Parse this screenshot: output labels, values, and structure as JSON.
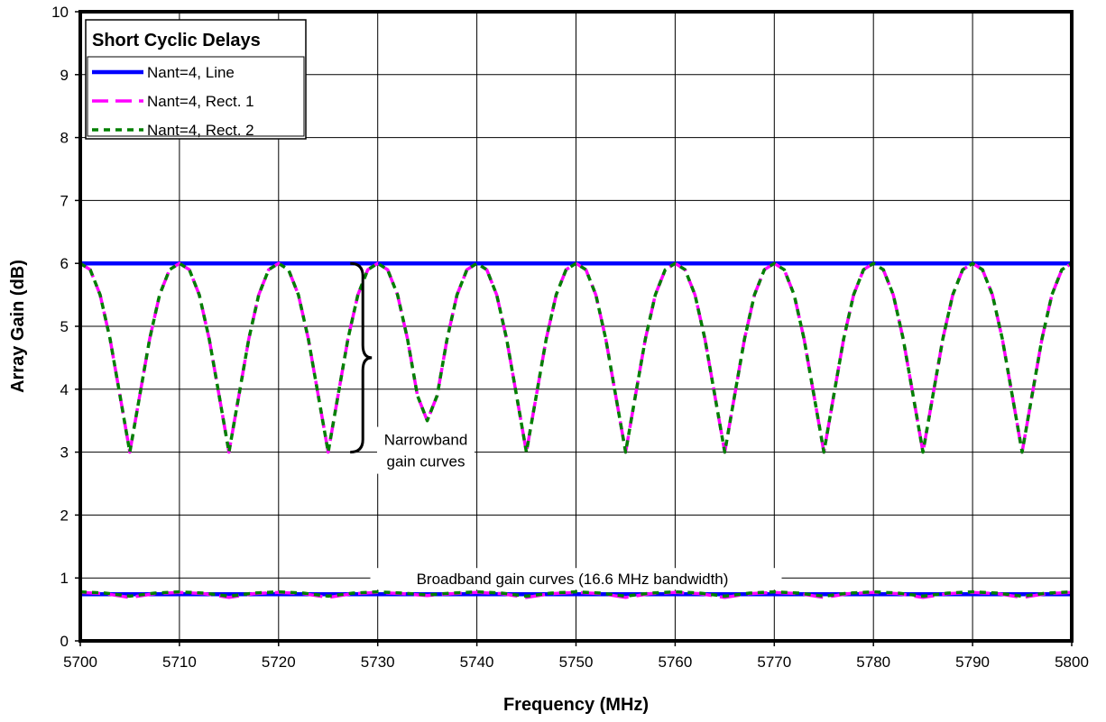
{
  "chart_data": {
    "type": "line",
    "title": "",
    "xlabel": "Frequency (MHz)",
    "ylabel": "Array Gain (dB)",
    "xlim": [
      5700,
      5800
    ],
    "ylim": [
      0,
      10
    ],
    "x_ticks": [
      5700,
      5710,
      5720,
      5730,
      5740,
      5750,
      5760,
      5770,
      5780,
      5790,
      5800
    ],
    "y_ticks": [
      0,
      1,
      2,
      3,
      4,
      5,
      6,
      7,
      8,
      9,
      10
    ],
    "grid": true,
    "legend": {
      "title": "Short Cyclic Delays",
      "placement": "top-left"
    },
    "series": [
      {
        "name": "Nant=4, Line",
        "color": "#0000ff",
        "style": "solid",
        "x": [
          5700,
          5800
        ],
        "values": [
          6.0,
          6.0
        ]
      },
      {
        "name": "Nant=4, Rect. 1",
        "color": "#ff00ff",
        "style": "dashed",
        "x": [
          5700,
          5701,
          5702,
          5703,
          5704,
          5705,
          5706,
          5707,
          5708,
          5709,
          5710,
          5711,
          5712,
          5713,
          5714,
          5715,
          5716,
          5717,
          5718,
          5719,
          5720,
          5721,
          5722,
          5723,
          5724,
          5725,
          5726,
          5727,
          5728,
          5729,
          5730,
          5731,
          5732,
          5733,
          5734,
          5735,
          5736,
          5737,
          5738,
          5739,
          5740,
          5741,
          5742,
          5743,
          5744,
          5745,
          5746,
          5747,
          5748,
          5749,
          5750,
          5751,
          5752,
          5753,
          5754,
          5755,
          5756,
          5757,
          5758,
          5759,
          5760,
          5761,
          5762,
          5763,
          5764,
          5765,
          5766,
          5767,
          5768,
          5769,
          5770,
          5771,
          5772,
          5773,
          5774,
          5775,
          5776,
          5777,
          5778,
          5779,
          5780,
          5781,
          5782,
          5783,
          5784,
          5785,
          5786,
          5787,
          5788,
          5789,
          5790,
          5791,
          5792,
          5793,
          5794,
          5795,
          5796,
          5797,
          5798,
          5799,
          5800
        ],
        "values": [
          6.0,
          5.9,
          5.5,
          4.8,
          3.9,
          3.0,
          3.9,
          4.8,
          5.5,
          5.9,
          6.0,
          5.9,
          5.5,
          4.8,
          3.9,
          3.0,
          3.9,
          4.8,
          5.5,
          5.9,
          6.0,
          5.9,
          5.5,
          4.8,
          3.9,
          3.0,
          3.9,
          4.8,
          5.5,
          5.9,
          6.0,
          5.9,
          5.5,
          4.8,
          3.9,
          3.5,
          3.9,
          4.8,
          5.5,
          5.9,
          6.0,
          5.9,
          5.5,
          4.8,
          3.9,
          3.0,
          3.9,
          4.8,
          5.5,
          5.9,
          6.0,
          5.9,
          5.5,
          4.8,
          3.9,
          3.0,
          3.9,
          4.8,
          5.5,
          5.9,
          6.0,
          5.9,
          5.5,
          4.8,
          3.9,
          3.0,
          3.9,
          4.8,
          5.5,
          5.9,
          6.0,
          5.9,
          5.5,
          4.8,
          3.9,
          3.0,
          3.9,
          4.8,
          5.5,
          5.9,
          6.0,
          5.9,
          5.5,
          4.8,
          3.9,
          3.0,
          3.9,
          4.8,
          5.5,
          5.9,
          6.0,
          5.9,
          5.5,
          4.8,
          3.9,
          3.0,
          3.9,
          4.8,
          5.5,
          5.9,
          6.0
        ]
      },
      {
        "name": "Nant=4, Rect. 2",
        "color": "#008000",
        "style": "dotted",
        "x": [
          5700,
          5701,
          5702,
          5703,
          5704,
          5705,
          5706,
          5707,
          5708,
          5709,
          5710,
          5711,
          5712,
          5713,
          5714,
          5715,
          5716,
          5717,
          5718,
          5719,
          5720,
          5721,
          5722,
          5723,
          5724,
          5725,
          5726,
          5727,
          5728,
          5729,
          5730,
          5731,
          5732,
          5733,
          5734,
          5735,
          5736,
          5737,
          5738,
          5739,
          5740,
          5741,
          5742,
          5743,
          5744,
          5745,
          5746,
          5747,
          5748,
          5749,
          5750,
          5751,
          5752,
          5753,
          5754,
          5755,
          5756,
          5757,
          5758,
          5759,
          5760,
          5761,
          5762,
          5763,
          5764,
          5765,
          5766,
          5767,
          5768,
          5769,
          5770,
          5771,
          5772,
          5773,
          5774,
          5775,
          5776,
          5777,
          5778,
          5779,
          5780,
          5781,
          5782,
          5783,
          5784,
          5785,
          5786,
          5787,
          5788,
          5789,
          5790,
          5791,
          5792,
          5793,
          5794,
          5795,
          5796,
          5797,
          5798,
          5799,
          5800
        ],
        "values": [
          6.0,
          5.9,
          5.5,
          4.8,
          3.9,
          3.0,
          3.9,
          4.8,
          5.5,
          5.9,
          6.0,
          5.9,
          5.5,
          4.8,
          3.9,
          3.0,
          3.9,
          4.8,
          5.5,
          5.9,
          6.0,
          5.9,
          5.5,
          4.8,
          3.9,
          3.0,
          3.9,
          4.8,
          5.5,
          5.9,
          6.0,
          5.9,
          5.5,
          4.8,
          3.9,
          3.5,
          3.9,
          4.8,
          5.5,
          5.9,
          6.0,
          5.9,
          5.5,
          4.8,
          3.9,
          3.0,
          3.9,
          4.8,
          5.5,
          5.9,
          6.0,
          5.9,
          5.5,
          4.8,
          3.9,
          3.0,
          3.9,
          4.8,
          5.5,
          5.9,
          6.0,
          5.9,
          5.5,
          4.8,
          3.9,
          3.0,
          3.9,
          4.8,
          5.5,
          5.9,
          6.0,
          5.9,
          5.5,
          4.8,
          3.9,
          3.0,
          3.9,
          4.8,
          5.5,
          5.9,
          6.0,
          5.9,
          5.5,
          4.8,
          3.9,
          3.0,
          3.9,
          4.8,
          5.5,
          5.9,
          6.0,
          5.9,
          5.5,
          4.8,
          3.9,
          3.0,
          3.9,
          4.8,
          5.5,
          5.9,
          6.0
        ]
      },
      {
        "name": "Nant=4, Line",
        "color": "#0000ff",
        "style": "solid",
        "x": [
          5700,
          5800
        ],
        "values": [
          0.74,
          0.74
        ]
      },
      {
        "name": "Nant=4, Rect. 1",
        "color": "#ff00ff",
        "style": "dashed",
        "x": [
          5700,
          5702.5,
          5705,
          5707.5,
          5710,
          5712.5,
          5715,
          5717.5,
          5720,
          5722.5,
          5725,
          5727.5,
          5730,
          5732.5,
          5735,
          5737.5,
          5740,
          5742.5,
          5745,
          5747.5,
          5750,
          5752.5,
          5755,
          5757.5,
          5760,
          5762.5,
          5765,
          5767.5,
          5770,
          5772.5,
          5775,
          5777.5,
          5780,
          5782.5,
          5785,
          5787.5,
          5790,
          5792.5,
          5795,
          5797.5,
          5800
        ],
        "values": [
          0.77,
          0.75,
          0.69,
          0.75,
          0.77,
          0.75,
          0.69,
          0.75,
          0.77,
          0.75,
          0.69,
          0.75,
          0.77,
          0.75,
          0.72,
          0.75,
          0.77,
          0.75,
          0.69,
          0.75,
          0.77,
          0.75,
          0.69,
          0.75,
          0.77,
          0.75,
          0.69,
          0.75,
          0.77,
          0.75,
          0.69,
          0.75,
          0.77,
          0.75,
          0.69,
          0.75,
          0.77,
          0.75,
          0.69,
          0.75,
          0.77
        ]
      },
      {
        "name": "Nant=4, Rect. 2",
        "color": "#008000",
        "style": "dotted",
        "x": [
          5700,
          5702.5,
          5705,
          5707.5,
          5710,
          5712.5,
          5715,
          5717.5,
          5720,
          5722.5,
          5725,
          5727.5,
          5730,
          5732.5,
          5735,
          5737.5,
          5740,
          5742.5,
          5745,
          5747.5,
          5750,
          5752.5,
          5755,
          5757.5,
          5760,
          5762.5,
          5765,
          5767.5,
          5770,
          5772.5,
          5775,
          5777.5,
          5780,
          5782.5,
          5785,
          5787.5,
          5790,
          5792.5,
          5795,
          5797.5,
          5800
        ],
        "values": [
          0.78,
          0.76,
          0.71,
          0.76,
          0.78,
          0.76,
          0.71,
          0.76,
          0.78,
          0.76,
          0.71,
          0.76,
          0.78,
          0.76,
          0.73,
          0.76,
          0.78,
          0.76,
          0.71,
          0.76,
          0.78,
          0.76,
          0.71,
          0.76,
          0.78,
          0.76,
          0.71,
          0.76,
          0.78,
          0.76,
          0.71,
          0.76,
          0.78,
          0.76,
          0.71,
          0.76,
          0.78,
          0.76,
          0.71,
          0.76,
          0.78
        ]
      }
    ],
    "annotations": [
      {
        "text_lines": [
          "Narrowband",
          "gain curves"
        ],
        "brace_from": 3.0,
        "brace_to": 6.0,
        "brace_x": 5728.5,
        "text_x": 5730.3,
        "text_y": 3.0
      },
      {
        "text": "Broadband gain curves (16.6 MHz bandwidth)",
        "x": 5750,
        "y": 0.9
      }
    ]
  }
}
